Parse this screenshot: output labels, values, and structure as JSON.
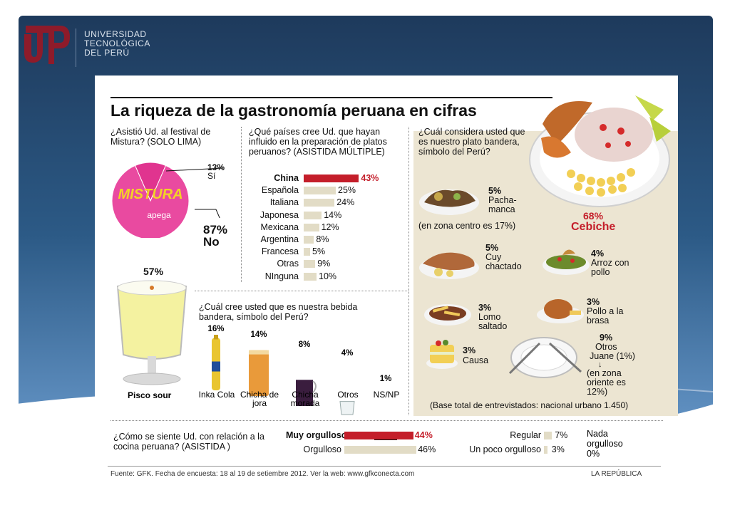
{
  "logo": {
    "line1": "UNIVERSIDAD",
    "line2": "TECNOLÓGICA",
    "line3": "DEL PERÚ"
  },
  "title": "La riqueza de la gastronomía peruana en cifras",
  "colors": {
    "accent": "#c41e2a",
    "bar": "#e2dcc6",
    "panel": "#ece5d2",
    "slide_top": "#1e3a5c",
    "slide_bottom": "#5f8fc0"
  },
  "mistura": {
    "question": "¿Asistió Ud. al festival de Mistura? (SOLO LIMA)",
    "logo_text": "MISTURA",
    "logo_sub": "apega",
    "yes_pct": "13%",
    "yes_label": "Sí",
    "no_pct": "87%",
    "no_label": "No"
  },
  "countries": {
    "question": "¿Qué países cree Ud. que hayan influido en la preparación de platos peruanos? (ASISTIDA MÚLTIPLE)"
  },
  "drinks": {
    "question": "¿Cuál cree usted que es nuestra bebida bandera, símbolo del Perú?"
  },
  "dishes": {
    "question": "¿Cuál considera usted que es nuestro plato bandera, símbolo del Perú?",
    "items": [
      {
        "pct": "68%",
        "name": "Cebiche"
      },
      {
        "pct": "5%",
        "name": "Pacha-manca",
        "note": "(en zona centro es 17%)"
      },
      {
        "pct": "5%",
        "name": "Cuy chactado"
      },
      {
        "pct": "4%",
        "name": "Arroz con pollo"
      },
      {
        "pct": "3%",
        "name": "Lomo saltado"
      },
      {
        "pct": "3%",
        "name": "Pollo a la brasa"
      },
      {
        "pct": "3%",
        "name": "Causa"
      },
      {
        "pct": "9%",
        "name": "Otros",
        "sub": "Juane (1%)",
        "note": "(en zona oriente es 12%)"
      }
    ],
    "base": "(Base total de entrevistados: nacional urbano 1.450)"
  },
  "pride": {
    "question": "¿Cómo se siente Ud. con relación a la cocina peruana? (ASISTIDA )"
  },
  "footer": {
    "source": "Fuente: GFK. Fecha de encuesta: 18 al 19 de setiembre 2012. Ver la web: www.gfkconecta.com",
    "credit": "LA REPÚBLICA"
  },
  "chart_data": [
    {
      "type": "pie",
      "title": "¿Asistió Ud. al festival de Mistura? (SOLO LIMA)",
      "categories": [
        "Sí",
        "No"
      ],
      "values": [
        13,
        87
      ]
    },
    {
      "type": "bar",
      "title": "¿Qué países cree Ud. que hayan influido en la preparación de platos peruanos? (ASISTIDA MÚLTIPLE)",
      "categories": [
        "China",
        "Española",
        "Italiana",
        "Japonesa",
        "Mexicana",
        "Argentina",
        "Francesa",
        "Otras",
        "NInguna"
      ],
      "values": [
        43,
        25,
        24,
        14,
        12,
        8,
        5,
        9,
        10
      ],
      "labels": [
        "43%",
        "25%",
        "24%",
        "14%",
        "12%",
        "8%",
        "5%",
        "9%",
        "10%"
      ]
    },
    {
      "type": "bar",
      "title": "¿Cuál cree usted que es nuestra bebida bandera, símbolo del Perú?",
      "categories": [
        "Pisco sour",
        "Inka Cola",
        "Chicha de jora",
        "Chicha morada",
        "Otros",
        "NS/NP"
      ],
      "values": [
        57,
        16,
        14,
        8,
        4,
        1
      ],
      "labels": [
        "57%",
        "16%",
        "14%",
        "8%",
        "4%",
        "1%"
      ]
    },
    {
      "type": "bar",
      "title": "¿Cómo se siente Ud. con relación a la cocina peruana? (ASISTIDA )",
      "categories": [
        "Muy orgulloso",
        "Orgulloso",
        "Regular",
        "Un poco orgulloso",
        "Nada orgulloso"
      ],
      "values": [
        44,
        46,
        7,
        3,
        0
      ],
      "labels": [
        "44%",
        "46%",
        "7%",
        "3%",
        "0%"
      ]
    }
  ]
}
